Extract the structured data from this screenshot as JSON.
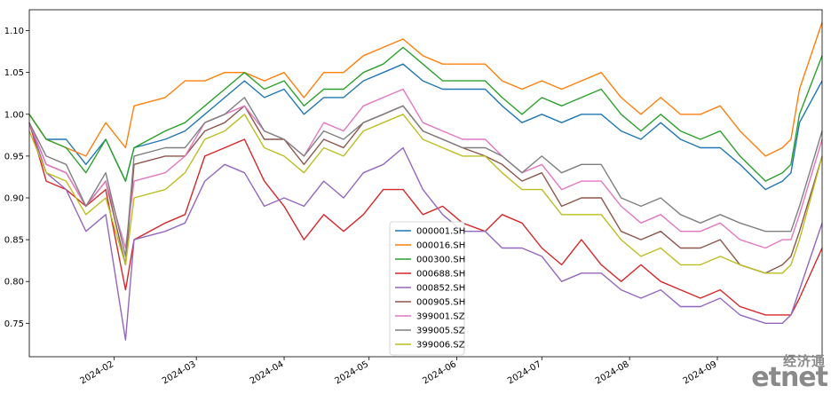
{
  "watermark": {
    "chinese": "经济通",
    "brand": "etnet"
  },
  "chart_data": {
    "type": "line",
    "title": "",
    "xlabel": "",
    "ylabel": "",
    "xlim": [
      "2024-01-02",
      "2024-10-08"
    ],
    "ylim": [
      0.71,
      1.125
    ],
    "grid": false,
    "legend_position": "lower-center",
    "y_ticks": [
      "0.75",
      "0.80",
      "0.85",
      "0.90",
      "0.95",
      "1.00",
      "1.05",
      "1.10"
    ],
    "x_ticks": [
      {
        "date": "2024-02-01",
        "label": "2024-02"
      },
      {
        "date": "2024-03-01",
        "label": "2024-03"
      },
      {
        "date": "2024-04-01",
        "label": "2024-04"
      },
      {
        "date": "2024-05-01",
        "label": "2024-05"
      },
      {
        "date": "2024-06-01",
        "label": "2024-06"
      },
      {
        "date": "2024-07-01",
        "label": "2024-07"
      },
      {
        "date": "2024-08-01",
        "label": "2024-08"
      },
      {
        "date": "2024-09-01",
        "label": "2024-09"
      }
    ],
    "x": [
      "2024-01-02",
      "2024-01-08",
      "2024-01-15",
      "2024-01-22",
      "2024-01-29",
      "2024-02-05",
      "2024-02-08",
      "2024-02-19",
      "2024-02-26",
      "2024-03-04",
      "2024-03-11",
      "2024-03-18",
      "2024-03-25",
      "2024-04-01",
      "2024-04-08",
      "2024-04-15",
      "2024-04-22",
      "2024-04-29",
      "2024-05-06",
      "2024-05-13",
      "2024-05-20",
      "2024-05-27",
      "2024-06-03",
      "2024-06-11",
      "2024-06-17",
      "2024-06-24",
      "2024-07-01",
      "2024-07-08",
      "2024-07-15",
      "2024-07-22",
      "2024-07-29",
      "2024-08-05",
      "2024-08-12",
      "2024-08-19",
      "2024-08-26",
      "2024-09-02",
      "2024-09-09",
      "2024-09-18",
      "2024-09-24",
      "2024-09-27",
      "2024-09-30",
      "2024-10-08"
    ],
    "series": [
      {
        "name": "000001.SH",
        "color": "#1f77b4",
        "values": [
          1.0,
          0.97,
          0.97,
          0.94,
          0.97,
          0.92,
          0.96,
          0.97,
          0.98,
          1.0,
          1.02,
          1.04,
          1.02,
          1.03,
          1.0,
          1.02,
          1.02,
          1.04,
          1.05,
          1.06,
          1.04,
          1.03,
          1.03,
          1.03,
          1.01,
          0.99,
          1.0,
          0.99,
          1.0,
          1.0,
          0.98,
          0.97,
          0.99,
          0.97,
          0.96,
          0.96,
          0.94,
          0.91,
          0.92,
          0.93,
          0.99,
          1.04
        ]
      },
      {
        "name": "000016.SH",
        "color": "#ff7f0e",
        "values": [
          1.0,
          0.97,
          0.96,
          0.95,
          0.99,
          0.96,
          1.01,
          1.02,
          1.04,
          1.04,
          1.05,
          1.05,
          1.04,
          1.05,
          1.02,
          1.05,
          1.05,
          1.07,
          1.08,
          1.09,
          1.07,
          1.06,
          1.06,
          1.06,
          1.04,
          1.03,
          1.04,
          1.03,
          1.04,
          1.05,
          1.02,
          1.0,
          1.02,
          1.0,
          1.0,
          1.01,
          0.98,
          0.95,
          0.96,
          0.97,
          1.03,
          1.11
        ]
      },
      {
        "name": "000300.SH",
        "color": "#2ca02c",
        "values": [
          1.0,
          0.97,
          0.96,
          0.93,
          0.97,
          0.92,
          0.96,
          0.98,
          0.99,
          1.01,
          1.03,
          1.05,
          1.03,
          1.04,
          1.01,
          1.03,
          1.03,
          1.05,
          1.06,
          1.08,
          1.06,
          1.04,
          1.04,
          1.04,
          1.02,
          1.0,
          1.02,
          1.01,
          1.02,
          1.03,
          1.0,
          0.98,
          1.0,
          0.98,
          0.97,
          0.98,
          0.95,
          0.92,
          0.93,
          0.94,
          1.0,
          1.07
        ]
      },
      {
        "name": "000688.SH",
        "color": "#d62728",
        "values": [
          0.99,
          0.92,
          0.91,
          0.89,
          0.91,
          0.79,
          0.85,
          0.87,
          0.88,
          0.95,
          0.96,
          0.97,
          0.92,
          0.89,
          0.85,
          0.88,
          0.86,
          0.88,
          0.91,
          0.91,
          0.88,
          0.89,
          0.87,
          0.86,
          0.88,
          0.87,
          0.84,
          0.82,
          0.85,
          0.82,
          0.8,
          0.82,
          0.8,
          0.79,
          0.78,
          0.79,
          0.77,
          0.76,
          0.76,
          0.76,
          0.78,
          0.84
        ]
      },
      {
        "name": "000852.SH",
        "color": "#9467bd",
        "values": [
          0.99,
          0.93,
          0.91,
          0.86,
          0.88,
          0.73,
          0.85,
          0.86,
          0.87,
          0.92,
          0.94,
          0.93,
          0.89,
          0.9,
          0.89,
          0.92,
          0.9,
          0.93,
          0.94,
          0.96,
          0.91,
          0.88,
          0.86,
          0.86,
          0.84,
          0.84,
          0.83,
          0.8,
          0.81,
          0.81,
          0.79,
          0.78,
          0.79,
          0.77,
          0.77,
          0.78,
          0.76,
          0.75,
          0.75,
          0.76,
          0.79,
          0.87
        ]
      },
      {
        "name": "000905.SH",
        "color": "#8c564b",
        "values": [
          0.99,
          0.94,
          0.93,
          0.89,
          0.92,
          0.82,
          0.94,
          0.95,
          0.95,
          0.98,
          0.99,
          1.01,
          0.97,
          0.97,
          0.94,
          0.97,
          0.96,
          0.99,
          1.0,
          1.01,
          0.98,
          0.97,
          0.96,
          0.95,
          0.94,
          0.92,
          0.93,
          0.89,
          0.9,
          0.9,
          0.86,
          0.85,
          0.86,
          0.84,
          0.84,
          0.85,
          0.82,
          0.81,
          0.82,
          0.83,
          0.86,
          0.95
        ]
      },
      {
        "name": "399001.SZ",
        "color": "#e377c2",
        "values": [
          0.99,
          0.94,
          0.93,
          0.89,
          0.92,
          0.84,
          0.92,
          0.93,
          0.95,
          0.99,
          1.0,
          1.01,
          0.98,
          0.97,
          0.95,
          0.99,
          0.98,
          1.01,
          1.02,
          1.03,
          0.99,
          0.98,
          0.97,
          0.97,
          0.95,
          0.93,
          0.94,
          0.91,
          0.92,
          0.92,
          0.89,
          0.87,
          0.88,
          0.86,
          0.86,
          0.87,
          0.85,
          0.84,
          0.85,
          0.85,
          0.88,
          0.97
        ]
      },
      {
        "name": "399005.SZ",
        "color": "#7f7f7f",
        "values": [
          0.99,
          0.95,
          0.94,
          0.89,
          0.93,
          0.83,
          0.95,
          0.96,
          0.96,
          0.99,
          1.0,
          1.02,
          0.98,
          0.97,
          0.95,
          0.98,
          0.97,
          0.99,
          1.0,
          1.01,
          0.98,
          0.97,
          0.96,
          0.96,
          0.95,
          0.93,
          0.95,
          0.93,
          0.94,
          0.94,
          0.9,
          0.89,
          0.9,
          0.88,
          0.87,
          0.88,
          0.87,
          0.86,
          0.86,
          0.86,
          0.89,
          0.98
        ]
      },
      {
        "name": "399006.SZ",
        "color": "#bcbd22",
        "values": [
          0.98,
          0.93,
          0.92,
          0.88,
          0.9,
          0.82,
          0.9,
          0.91,
          0.93,
          0.97,
          0.98,
          1.0,
          0.96,
          0.95,
          0.93,
          0.96,
          0.95,
          0.98,
          0.99,
          1.0,
          0.97,
          0.96,
          0.95,
          0.95,
          0.93,
          0.91,
          0.91,
          0.88,
          0.88,
          0.88,
          0.85,
          0.83,
          0.84,
          0.82,
          0.82,
          0.83,
          0.82,
          0.81,
          0.81,
          0.82,
          0.85,
          0.95
        ]
      }
    ]
  }
}
